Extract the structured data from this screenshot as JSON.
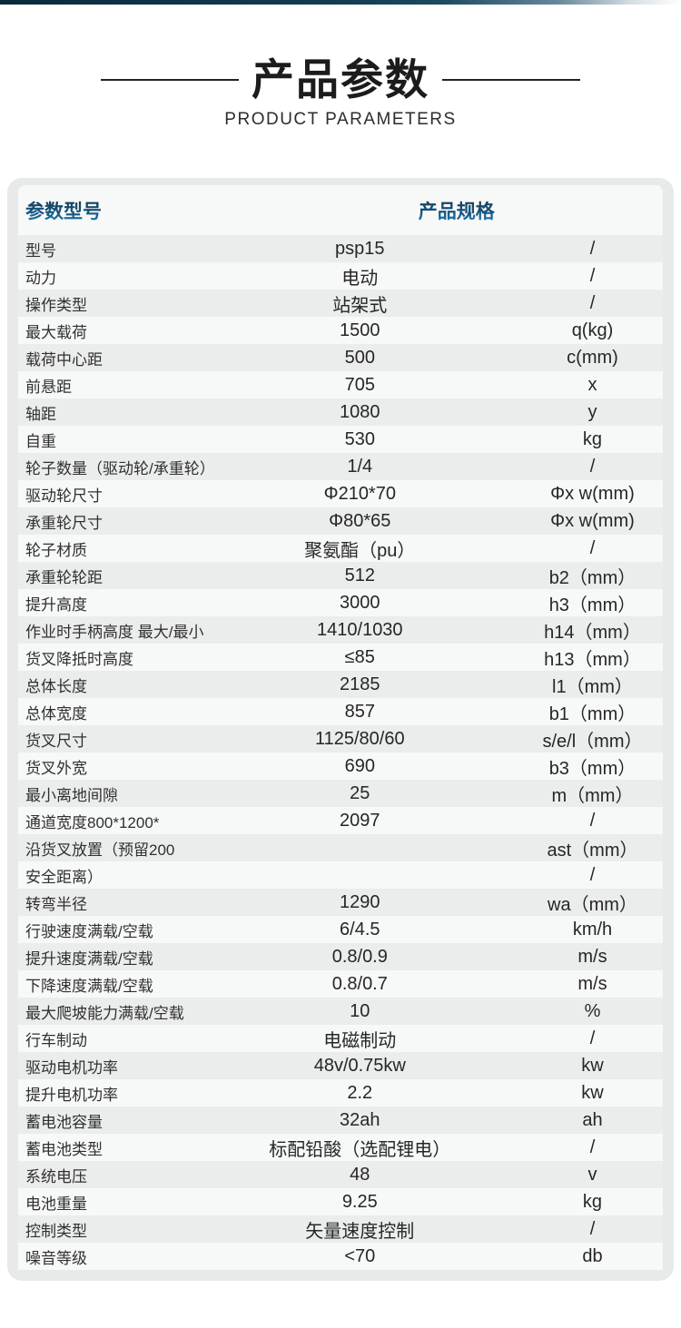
{
  "page": {
    "title": "产品参数",
    "subtitle": "PRODUCT PARAMETERS"
  },
  "colors": {
    "top_bar_dark": "#0f3549",
    "header_text_blue_top": "#17374e",
    "header_text_blue_bottom": "#2180bd",
    "card_background": "#e8e9e9",
    "row_odd": "#ebecec",
    "row_even": "#f7f8f8",
    "text_dark": "#262626"
  },
  "table": {
    "header": {
      "left": "参数型号",
      "right": "产品规格"
    },
    "rows": [
      {
        "label": "型号",
        "value": "psp15",
        "unit": "/"
      },
      {
        "label": "动力",
        "value": "电动",
        "unit": "/"
      },
      {
        "label": "操作类型",
        "value": "站架式",
        "unit": "/"
      },
      {
        "label": "最大载荷",
        "value": "1500",
        "unit": "q(kg)"
      },
      {
        "label": "载荷中心距",
        "value": "500",
        "unit": "c(mm)"
      },
      {
        "label": "前悬距",
        "value": "705",
        "unit": "x"
      },
      {
        "label": "轴距",
        "value": "1080",
        "unit": "y"
      },
      {
        "label": "自重",
        "value": "530",
        "unit": "kg"
      },
      {
        "label": "轮子数量（驱动轮/承重轮）",
        "value": "1/4",
        "unit": "/"
      },
      {
        "label": "驱动轮尺寸",
        "value": "Φ210*70",
        "unit": "Φx w(mm)"
      },
      {
        "label": "承重轮尺寸",
        "value": "Φ80*65",
        "unit": "Φx w(mm)"
      },
      {
        "label": "轮子材质",
        "value": "聚氨酯（pu）",
        "unit": "/"
      },
      {
        "label": "承重轮轮距",
        "value": "512",
        "unit": "b2（mm）"
      },
      {
        "label": "提升高度",
        "value": "3000",
        "unit": "h3（mm）"
      },
      {
        "label": "作业时手柄高度 最大/最小",
        "value": "1410/1030",
        "unit": "h14（mm）"
      },
      {
        "label": "货叉降抵时高度",
        "value": "≤85",
        "unit": "h13（mm）"
      },
      {
        "label": "总体长度",
        "value": "2185",
        "unit": "l1（mm）"
      },
      {
        "label": "总体宽度",
        "value": "857",
        "unit": "b1（mm）"
      },
      {
        "label": "货叉尺寸",
        "value": "1125/80/60",
        "unit": "s/e/l（mm）"
      },
      {
        "label": "货叉外宽",
        "value": "690",
        "unit": "b3（mm）"
      },
      {
        "label": "最小离地间隙",
        "value": "25",
        "unit": "m（mm）"
      },
      {
        "label": "通道宽度800*1200*",
        "value": "2097",
        "unit": "/"
      },
      {
        "label": "沿货叉放置（预留200",
        "value": "",
        "unit": "ast（mm）"
      },
      {
        "label": "安全距离）",
        "value": "",
        "unit": "/"
      },
      {
        "label": "转弯半径",
        "value": "1290",
        "unit": "wa（mm）"
      },
      {
        "label": "行驶速度满载/空载",
        "value": "6/4.5",
        "unit": "km/h"
      },
      {
        "label": "提升速度满载/空载",
        "value": "0.8/0.9",
        "unit": "m/s"
      },
      {
        "label": "下降速度满载/空载",
        "value": "0.8/0.7",
        "unit": "m/s"
      },
      {
        "label": "最大爬坡能力满载/空载",
        "value": "10",
        "unit": "%"
      },
      {
        "label": "行车制动",
        "value": "电磁制动",
        "unit": "/"
      },
      {
        "label": "驱动电机功率",
        "value": "48v/0.75kw",
        "unit": "kw"
      },
      {
        "label": "提升电机功率",
        "value": "2.2",
        "unit": "kw"
      },
      {
        "label": "蓄电池容量",
        "value": "32ah",
        "unit": "ah"
      },
      {
        "label": "蓄电池类型",
        "value": "标配铅酸（选配锂电）",
        "unit": "/"
      },
      {
        "label": "系统电压",
        "value": "48",
        "unit": "v"
      },
      {
        "label": "电池重量",
        "value": "9.25",
        "unit": "kg"
      },
      {
        "label": "控制类型",
        "value": "矢量速度控制",
        "unit": "/"
      },
      {
        "label": "噪音等级",
        "value": "<70",
        "unit": "db"
      }
    ]
  }
}
